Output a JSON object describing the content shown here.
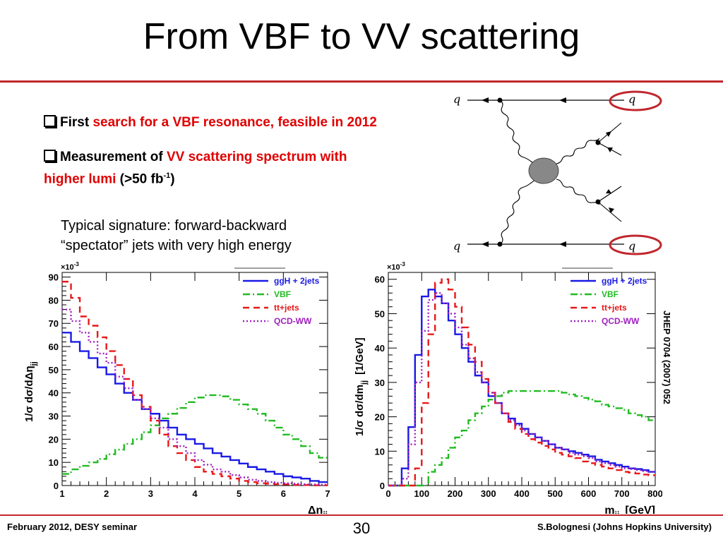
{
  "slide": {
    "title": "From VBF to VV scattering",
    "bullet1_prefix": "First ",
    "bullet1_red": "search for a VBF resonance, feasible in 2012",
    "bullet2_prefix": "Measurement of ",
    "bullet2_red_line1": "VV scattering spectrum with",
    "bullet2_red_line2": "higher lumi",
    "bullet2_suffix": " (>50 fb",
    "bullet2_sup": "-1",
    "bullet2_end": ")",
    "typical_line1": "Typical signature: forward-backward",
    "typical_line2": "“spectator” jets with very high energy",
    "reference": "JHEP 0704 (2007) 052",
    "footer_left": "February 2012, DESY seminar",
    "page_number": "30",
    "footer_right": "S.Bolognesi (Johns Hopkins University)",
    "accent_color": "#c0272d"
  },
  "diagram": {
    "labels": {
      "top_left": "q",
      "top_right": "q",
      "bottom_left": "q",
      "bottom_right": "q"
    }
  },
  "chart_data": [
    {
      "type": "line",
      "title": "",
      "xlabel": "Δη",
      "xlabel_sub": "jj",
      "ylabel": "1/σ dσ/dΔη",
      "ylabel_sub": "jj",
      "y_multiplier": "×10",
      "y_multiplier_exp": "-3",
      "xlim": [
        1,
        7
      ],
      "ylim": [
        0,
        92
      ],
      "xticks": [
        1,
        2,
        3,
        4,
        5,
        6,
        7
      ],
      "yticks": [
        0,
        10,
        20,
        30,
        40,
        50,
        60,
        70,
        80,
        90
      ],
      "legend": "top-right",
      "x": [
        1.1,
        1.3,
        1.5,
        1.7,
        1.9,
        2.1,
        2.3,
        2.5,
        2.7,
        2.9,
        3.1,
        3.3,
        3.5,
        3.7,
        3.9,
        4.1,
        4.3,
        4.5,
        4.7,
        4.9,
        5.1,
        5.3,
        5.5,
        5.7,
        5.9,
        6.1,
        6.3,
        6.5,
        6.7,
        6.9
      ],
      "series": [
        {
          "name": "ggH + 2jets",
          "color": "#1a1ae6",
          "style": "solid",
          "values": [
            66,
            62,
            58,
            55,
            51,
            48,
            44,
            40,
            37,
            33,
            31,
            28,
            25,
            22,
            20,
            18,
            16,
            14,
            12.5,
            11,
            9.5,
            8,
            7,
            6,
            5,
            4,
            3.5,
            3,
            2,
            1.5
          ]
        },
        {
          "name": "VBF",
          "color": "#22bb22",
          "style": "dashdot",
          "values": [
            5,
            7,
            8.5,
            10,
            11.5,
            13.5,
            15.5,
            18,
            20,
            23,
            26,
            29,
            31,
            33.5,
            36,
            38,
            39,
            39,
            38.5,
            37,
            35,
            33,
            31,
            28,
            25,
            22,
            20,
            17,
            14,
            12
          ]
        },
        {
          "name": "tt+jets",
          "color": "#e81818",
          "style": "dashed",
          "values": [
            88,
            81,
            73,
            69,
            64,
            58,
            52,
            46,
            39,
            34,
            28,
            22,
            17,
            14,
            11,
            8,
            6,
            5,
            4,
            3,
            2,
            1.5,
            1,
            0.8,
            0.6,
            0.5,
            0.3,
            0.2,
            0.1,
            0.1
          ]
        },
        {
          "name": "QCD-WW",
          "color": "#a020c0",
          "style": "dotted",
          "values": [
            76,
            71,
            66,
            62,
            57,
            53,
            47,
            42,
            37,
            33,
            29,
            25,
            20,
            17,
            14,
            11,
            9,
            7,
            6,
            4.5,
            3.5,
            2.5,
            2,
            1.5,
            1.2,
            1,
            0.8,
            0.6,
            0.5,
            0.4
          ]
        }
      ]
    },
    {
      "type": "line",
      "title": "",
      "xlabel": "m",
      "xlabel_sub": "jj",
      "xlabel_unit": "[GeV]",
      "ylabel": "1/σ dσ/dm",
      "ylabel_sub": "jj",
      "ylabel_unit": "[1/GeV]",
      "y_multiplier": "×10",
      "y_multiplier_exp": "-3",
      "xlim": [
        0,
        800
      ],
      "ylim": [
        0,
        62
      ],
      "xticks": [
        0,
        100,
        200,
        300,
        400,
        500,
        600,
        700,
        800
      ],
      "yticks": [
        0,
        10,
        20,
        30,
        40,
        50,
        60
      ],
      "legend": "top-right",
      "x": [
        10,
        30,
        50,
        70,
        90,
        110,
        130,
        150,
        170,
        190,
        210,
        230,
        250,
        270,
        290,
        310,
        330,
        350,
        370,
        390,
        410,
        430,
        450,
        470,
        490,
        510,
        530,
        550,
        570,
        590,
        610,
        630,
        650,
        670,
        690,
        710,
        730,
        750,
        770,
        790
      ],
      "series": [
        {
          "name": "ggH + 2jets",
          "color": "#1a1ae6",
          "style": "solid",
          "values": [
            0,
            0,
            5,
            17,
            38,
            55,
            57,
            55,
            53,
            48,
            44,
            40,
            36,
            32,
            30,
            26,
            24,
            21,
            19.5,
            18,
            16.5,
            15,
            14,
            13,
            12,
            11,
            10.5,
            10,
            9.5,
            9,
            8.5,
            7.5,
            7,
            6.5,
            6,
            5.5,
            5,
            4.8,
            4.5,
            4
          ]
        },
        {
          "name": "VBF",
          "color": "#22bb22",
          "style": "dashdot",
          "values": [
            0,
            0,
            0,
            0,
            0,
            0,
            4,
            6,
            8,
            11,
            14,
            16,
            19,
            21,
            23,
            25,
            26,
            27,
            27.5,
            27.5,
            27.5,
            27.5,
            27.5,
            27.5,
            27.5,
            27.5,
            27,
            26.5,
            26,
            25.5,
            25,
            24.5,
            23.5,
            23,
            22.5,
            22,
            21,
            20.5,
            20,
            19
          ]
        },
        {
          "name": "tt+jets",
          "color": "#e81818",
          "style": "dashed",
          "values": [
            0,
            0,
            0,
            0,
            5,
            24,
            44,
            59,
            60,
            57,
            52,
            46,
            41,
            36,
            31,
            27,
            24,
            21,
            18.5,
            16.5,
            15,
            13.5,
            12.5,
            11.5,
            10.5,
            9.5,
            9,
            8.5,
            8,
            7,
            6.5,
            6,
            5.5,
            5,
            4.5,
            4,
            3.8,
            3.5,
            3.2,
            3
          ]
        },
        {
          "name": "QCD-WW",
          "color": "#a020c0",
          "style": "dotted",
          "values": [
            0,
            0,
            2,
            12,
            30,
            45,
            54,
            56,
            53,
            50,
            46,
            41,
            37,
            33,
            30,
            27,
            24,
            21,
            19,
            17.5,
            16,
            15,
            14,
            13,
            12,
            11,
            10.5,
            9.5,
            9,
            8.5,
            8,
            7,
            6.5,
            6,
            5.5,
            5,
            4.8,
            4.5,
            4.2,
            4
          ]
        }
      ]
    }
  ]
}
